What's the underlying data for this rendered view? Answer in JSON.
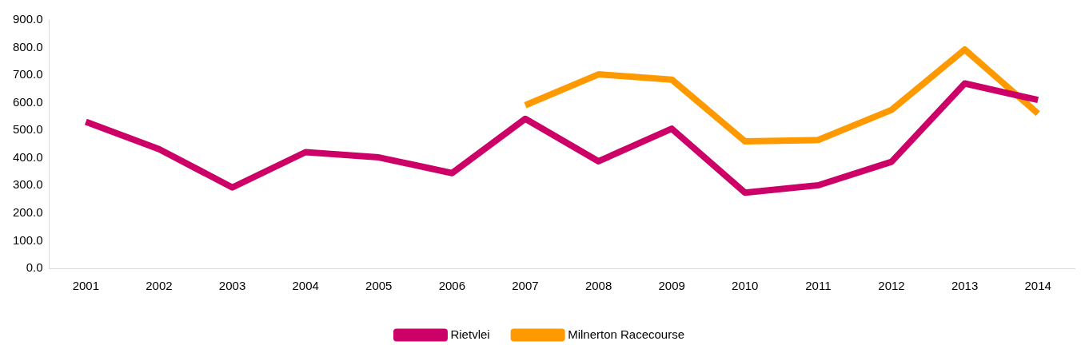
{
  "chart_data": {
    "type": "line",
    "categories": [
      "2001",
      "2002",
      "2003",
      "2004",
      "2005",
      "2006",
      "2007",
      "2008",
      "2009",
      "2010",
      "2011",
      "2012",
      "2013",
      "2014"
    ],
    "series": [
      {
        "name": "Rietvlei",
        "color": "#cc0066",
        "values": [
          531,
          432,
          293,
          421,
          402,
          345,
          542,
          388,
          506,
          274,
          301,
          386,
          670,
          610
        ]
      },
      {
        "name": "Milnerton Racecourse",
        "color": "#ff9900",
        "values": [
          null,
          null,
          null,
          null,
          null,
          null,
          591,
          703,
          684,
          460,
          465,
          574,
          793,
          561
        ]
      }
    ],
    "ylim": [
      0,
      900
    ],
    "yticks": [
      {
        "value": 0,
        "label": "0.0"
      },
      {
        "value": 100,
        "label": "100.0"
      },
      {
        "value": 200,
        "label": "200.0"
      },
      {
        "value": 300,
        "label": "300.0"
      },
      {
        "value": 400,
        "label": "400.0"
      },
      {
        "value": 500,
        "label": "500.0"
      },
      {
        "value": 600,
        "label": "600.0"
      },
      {
        "value": 700,
        "label": "700.0"
      },
      {
        "value": 800,
        "label": "800.0"
      },
      {
        "value": 900,
        "label": "900.0"
      }
    ],
    "grid": false,
    "legend": "bottom",
    "marker": "none",
    "line_style": "solid"
  }
}
